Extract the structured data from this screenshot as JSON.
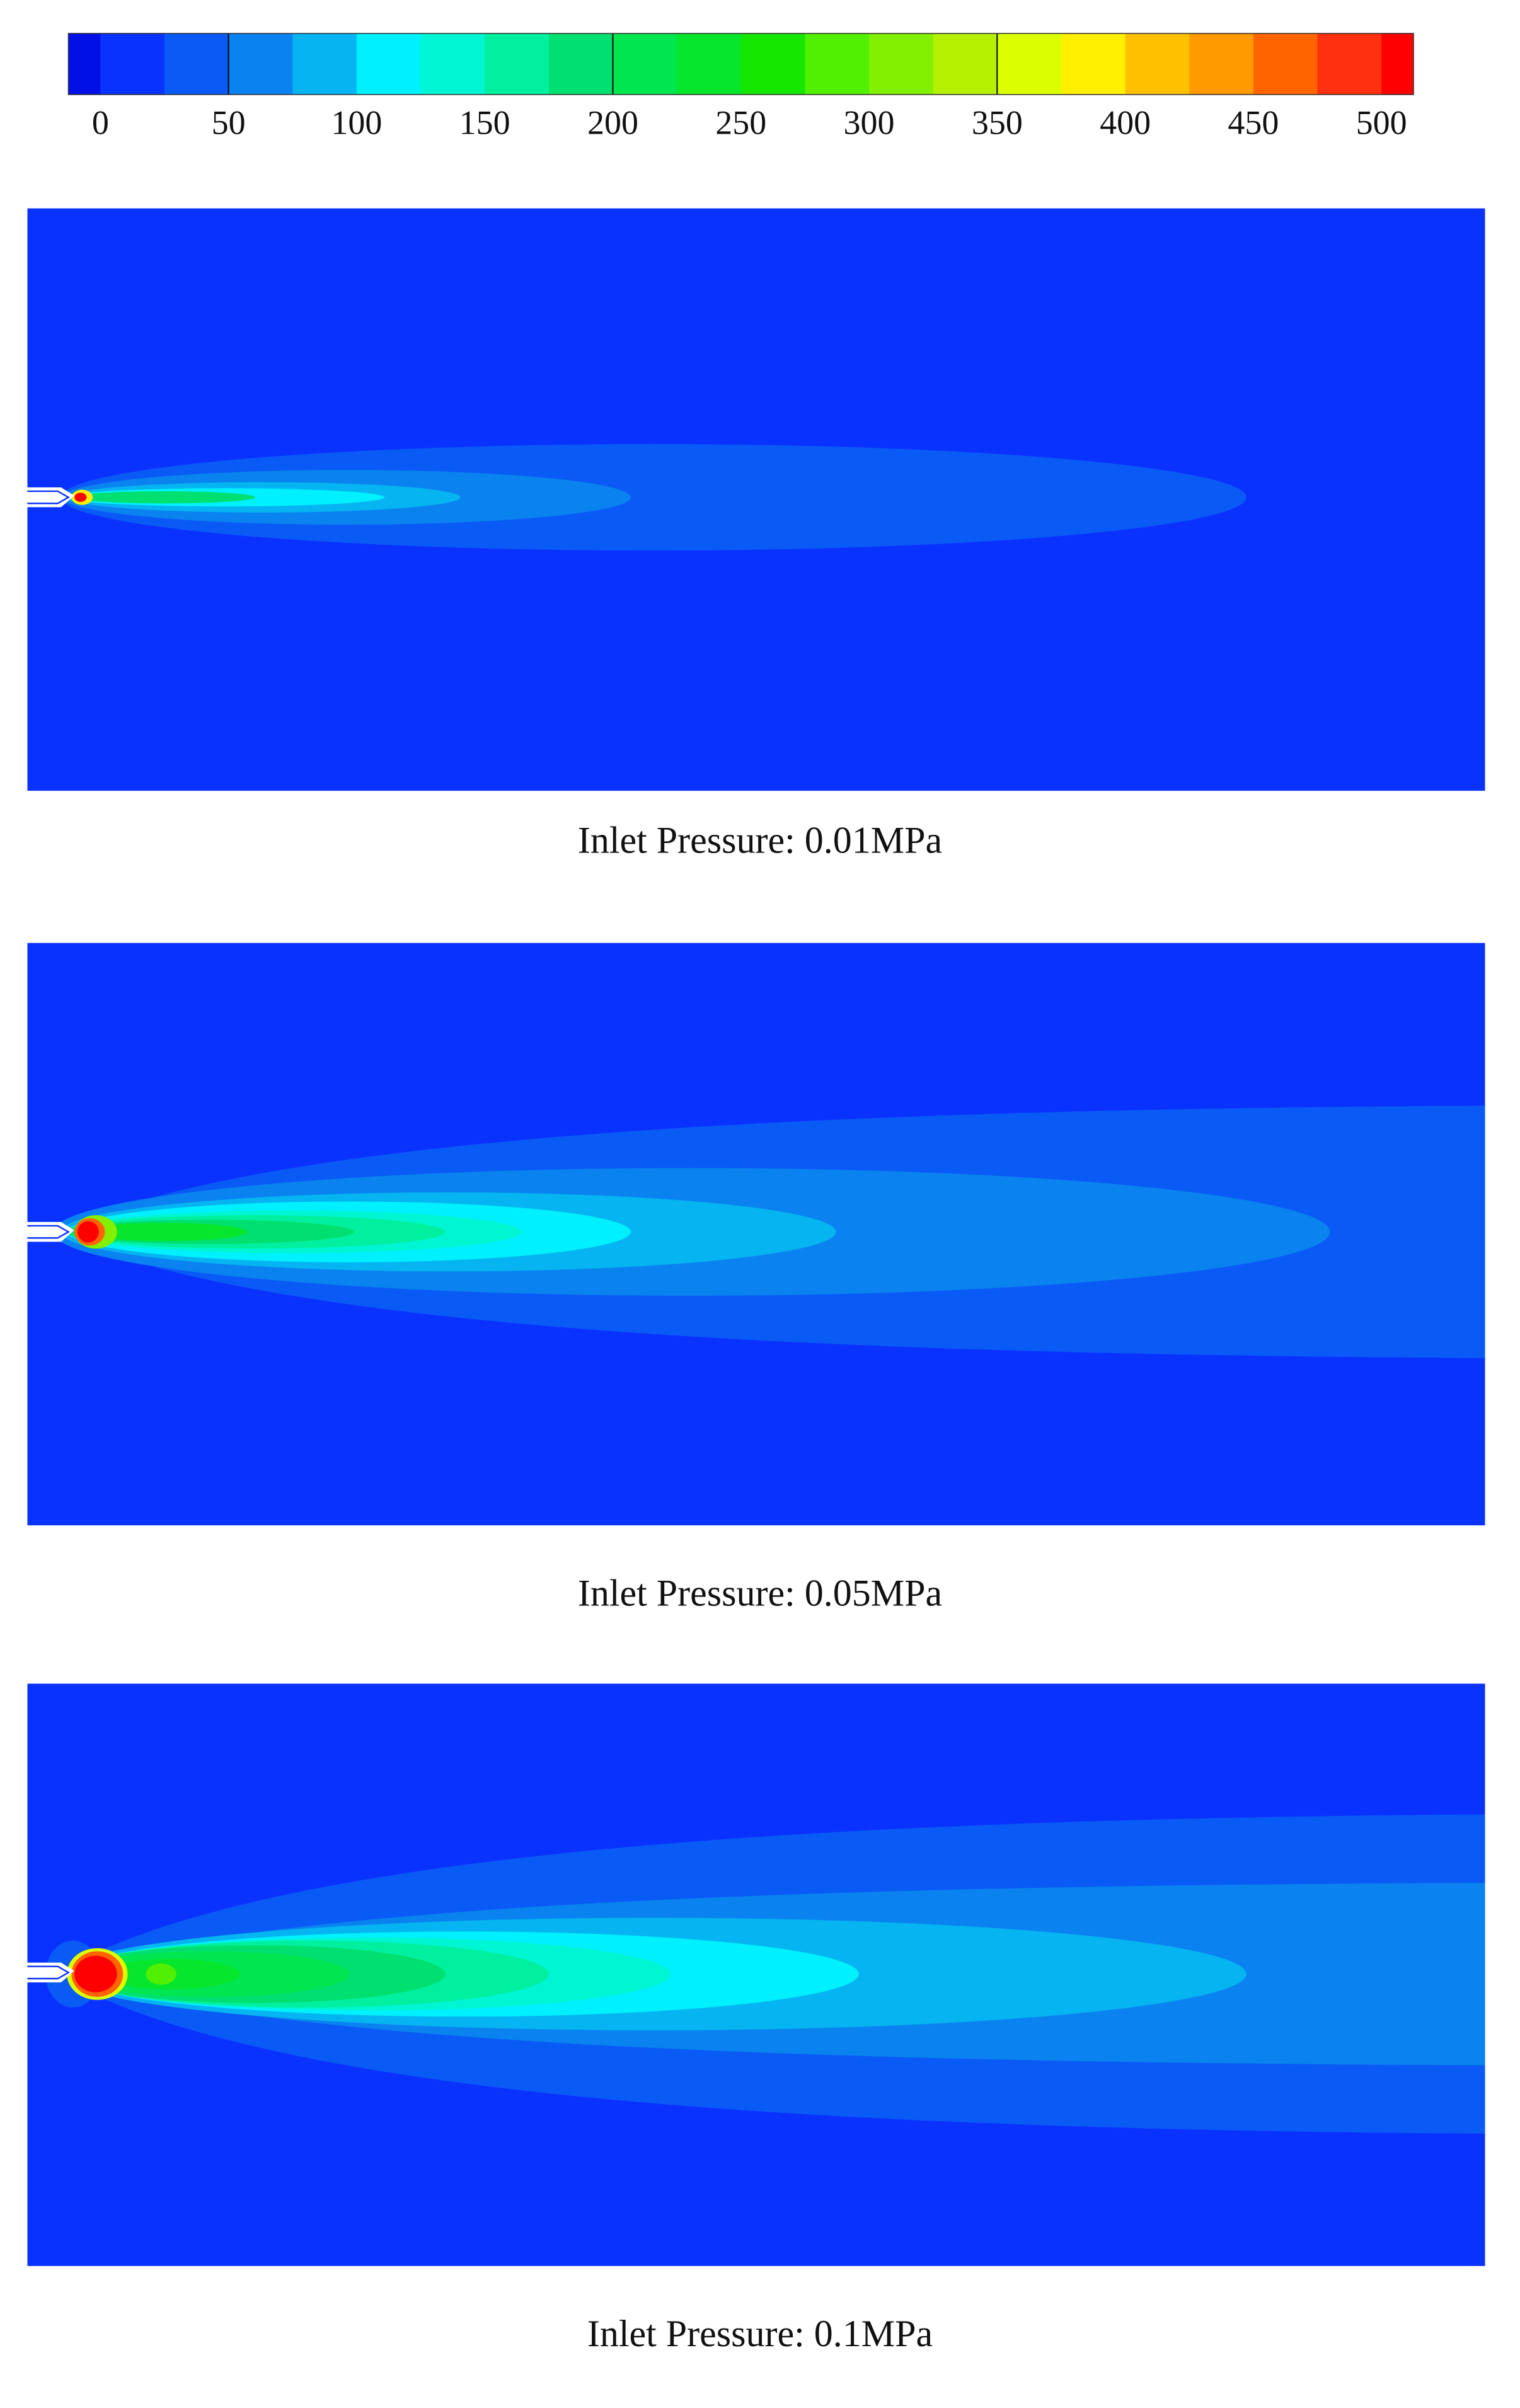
{
  "colorbar": {
    "clim": [
      -12.5,
      512.5
    ],
    "levels": [
      0,
      25,
      50,
      75,
      100,
      125,
      150,
      175,
      200,
      225,
      250,
      275,
      300,
      325,
      350,
      375,
      400,
      425,
      450,
      475,
      500
    ],
    "colors": [
      "#0010e6",
      "#0a32ff",
      "#0a5af5",
      "#0a82f0",
      "#05b4f0",
      "#00f0ff",
      "#00f5d2",
      "#00f0a0",
      "#00e070",
      "#00e650",
      "#05e62d",
      "#14e600",
      "#50f000",
      "#82f000",
      "#b4f000",
      "#dcff00",
      "#ffef00",
      "#ffc000",
      "#ff9a00",
      "#ff6400",
      "#ff3010",
      "#ff0000"
    ],
    "ticks": [
      0,
      50,
      100,
      150,
      200,
      250,
      300,
      350,
      400,
      450,
      500
    ],
    "separators": [
      50,
      200,
      350
    ]
  },
  "panels": [
    {
      "caption": "Inlet Pressure: 0.01MPa"
    },
    {
      "caption": "Inlet Pressure: 0.05MPa"
    },
    {
      "caption": "Inlet Pressure: 0.1MPa"
    }
  ]
}
